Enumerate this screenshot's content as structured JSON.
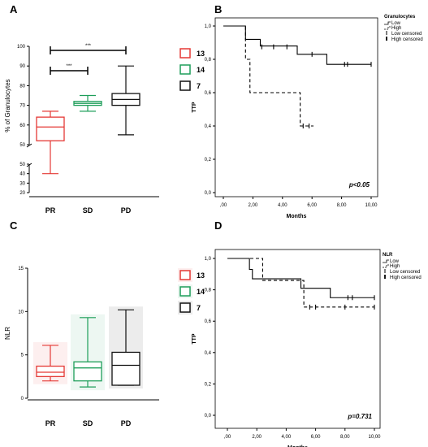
{
  "chart_data": [
    {
      "panel": "A",
      "type": "boxplot",
      "ylabel": "% of Granulocytes",
      "categories": [
        "PR",
        "SD",
        "PD"
      ],
      "legend": [
        "13",
        "14",
        "7"
      ],
      "colors": [
        "#e53935",
        "#1e9e5a",
        "#111111"
      ],
      "yticks_upper": [
        "50",
        "60",
        "70",
        "80",
        "90",
        "100"
      ],
      "yticks_lower": [
        "20",
        "30",
        "40",
        "50"
      ],
      "axis_break": true,
      "boxes": [
        {
          "min": 40,
          "q1": 52,
          "median": 59,
          "q3": 64,
          "max": 67
        },
        {
          "min": 67,
          "q1": 70,
          "median": 71,
          "q3": 72,
          "max": 75
        },
        {
          "min": 55,
          "q1": 70,
          "median": 73,
          "q3": 76,
          "max": 90
        }
      ],
      "significance": [
        {
          "from": "PR",
          "to": "SD",
          "label": "***"
        },
        {
          "from": "PR",
          "to": "PD",
          "label": "***"
        }
      ]
    },
    {
      "panel": "B",
      "type": "line",
      "xlabel": "Months",
      "ylabel": "TTP",
      "xticks": [
        ",00",
        "2,00",
        "4,00",
        "6,00",
        "8,00",
        "10,00"
      ],
      "yticks": [
        "0,0",
        "0,2",
        "0,4",
        "0,6",
        "0,8",
        "1,0"
      ],
      "xlim": [
        0,
        10
      ],
      "ylim": [
        0,
        1
      ],
      "legend_title": "Granulocytes",
      "legend": [
        "Low",
        "High",
        "Low censored",
        "High censored"
      ],
      "series": [
        {
          "name": "Low",
          "style": "solid",
          "steps": [
            [
              0,
              1.0
            ],
            [
              1.5,
              0.92
            ],
            [
              2.5,
              0.88
            ],
            [
              4.5,
              0.88
            ],
            [
              5,
              0.83
            ],
            [
              7,
              0.77
            ],
            [
              10,
              0.77
            ]
          ],
          "censored": [
            [
              2.6,
              0.875
            ],
            [
              3.4,
              0.875
            ],
            [
              4.3,
              0.875
            ],
            [
              6.0,
              0.83
            ],
            [
              8.2,
              0.77
            ],
            [
              8.4,
              0.77
            ],
            [
              10.0,
              0.77
            ]
          ]
        },
        {
          "name": "High",
          "style": "dashed",
          "steps": [
            [
              0,
              1.0
            ],
            [
              1.5,
              0.8
            ],
            [
              1.8,
              0.6
            ],
            [
              4.9,
              0.6
            ],
            [
              5.2,
              0.4
            ],
            [
              6.1,
              0.4
            ]
          ],
          "censored": [
            [
              5.4,
              0.4
            ],
            [
              5.8,
              0.4
            ]
          ]
        }
      ],
      "annotation": "p<0.05"
    },
    {
      "panel": "C",
      "type": "boxplot",
      "ylabel": "NLR",
      "categories": [
        "PR",
        "SD",
        "PD"
      ],
      "legend": [
        "13",
        "14",
        "7"
      ],
      "colors": [
        "#e53935",
        "#1e9e5a",
        "#111111"
      ],
      "yticks": [
        "0",
        "5",
        "10",
        "15"
      ],
      "ylim": [
        0,
        15
      ],
      "boxes": [
        {
          "min": 2.0,
          "q1": 2.5,
          "median": 3.0,
          "q3": 3.7,
          "max": 6.1
        },
        {
          "min": 1.3,
          "q1": 2.0,
          "median": 3.5,
          "q3": 4.2,
          "max": 9.3
        },
        {
          "min": 1.5,
          "q1": 1.5,
          "median": 3.8,
          "q3": 5.3,
          "max": 10.2
        }
      ]
    },
    {
      "panel": "D",
      "type": "line",
      "xlabel": "Months",
      "ylabel": "TTP",
      "xticks": [
        ",00",
        "2,00",
        "4,00",
        "6,00",
        "8,00",
        "10,00"
      ],
      "yticks": [
        "0,0",
        "0,2",
        "0,4",
        "0,6",
        "0,8",
        "1,0"
      ],
      "xlim": [
        0,
        10
      ],
      "ylim": [
        0,
        1
      ],
      "legend_title": "NLR",
      "legend": [
        "Low",
        "High",
        "Low censored",
        "High censored"
      ],
      "series": [
        {
          "name": "Low",
          "style": "solid",
          "steps": [
            [
              0,
              1.0
            ],
            [
              1.5,
              0.93
            ],
            [
              1.7,
              0.87
            ],
            [
              4.8,
              0.87
            ],
            [
              5.0,
              0.81
            ],
            [
              7.0,
              0.81
            ],
            [
              7.0,
              0.75
            ],
            [
              10,
              0.75
            ]
          ],
          "censored": [
            [
              8.2,
              0.75
            ],
            [
              8.5,
              0.75
            ],
            [
              10.0,
              0.75
            ]
          ]
        },
        {
          "name": "High",
          "style": "dashed",
          "steps": [
            [
              0,
              1.0
            ],
            [
              2.3,
              1.0
            ],
            [
              2.4,
              0.86
            ],
            [
              4.6,
              0.86
            ],
            [
              5.2,
              0.69
            ],
            [
              10,
              0.69
            ]
          ],
          "censored": [
            [
              5.6,
              0.69
            ],
            [
              6.0,
              0.69
            ],
            [
              8.0,
              0.69
            ],
            [
              10.0,
              0.69
            ]
          ]
        }
      ],
      "annotation": "p=0.731"
    }
  ]
}
